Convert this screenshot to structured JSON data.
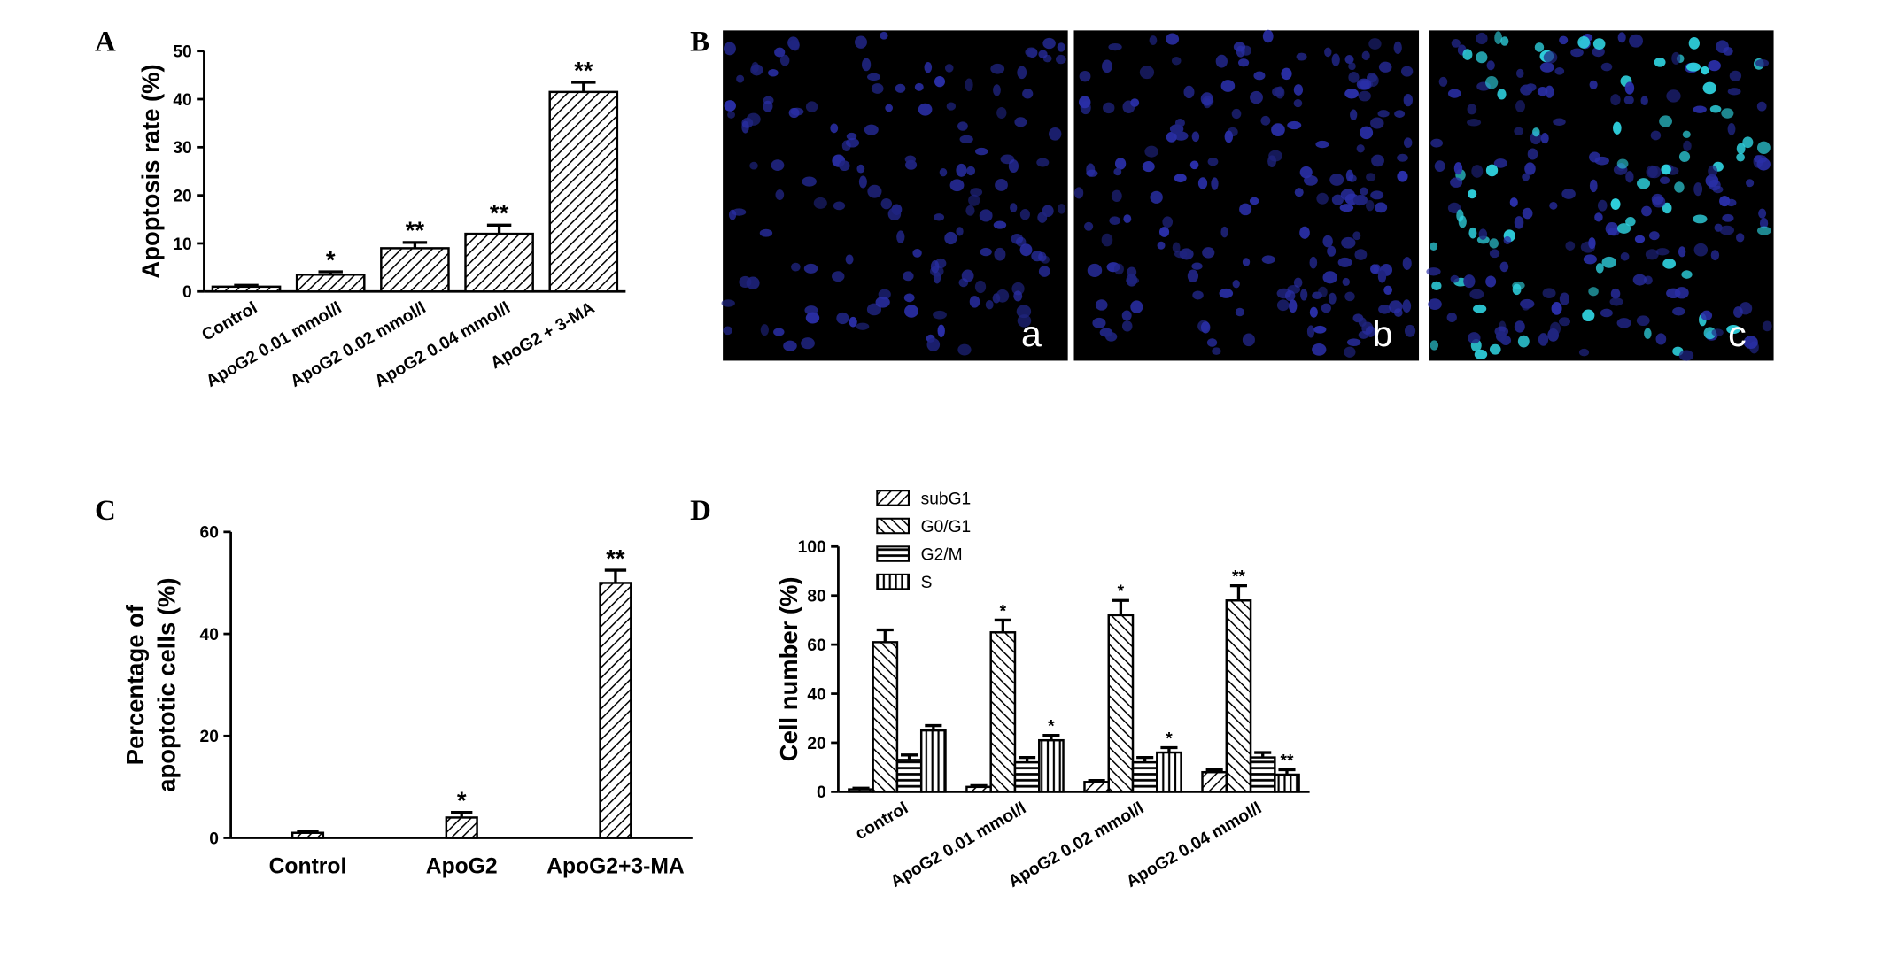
{
  "chart_data": [
    {
      "type": "bar",
      "panel_label": "A",
      "ylabel": "Apoptosis rate (%)",
      "categories": [
        "Control",
        "ApoG2 0.01 mmol/l",
        "ApoG2 0.02 mmol/l",
        "ApoG2 0.04 mmol/l",
        "ApoG2 + 3-MA"
      ],
      "values": [
        1,
        3.5,
        9,
        12,
        41.5
      ],
      "errors": [
        0.3,
        0.6,
        1.2,
        1.8,
        2
      ],
      "annotations": [
        null,
        "*",
        "**",
        "**",
        "**"
      ],
      "pattern": "diagonal",
      "ylim": [
        0,
        50
      ],
      "yticks": [
        0,
        10,
        20,
        30,
        40,
        50
      ]
    },
    {
      "type": "bar",
      "panel_label": "C",
      "ylabel": [
        "Percentage of",
        "apoptotic cells (%)"
      ],
      "categories": [
        "Control",
        "ApoG2",
        "ApoG2+3-MA"
      ],
      "values": [
        1,
        4,
        50
      ],
      "errors": [
        0.3,
        1,
        2.5
      ],
      "annotations": [
        null,
        "*",
        "**"
      ],
      "pattern": "diagonal",
      "ylim": [
        0,
        60
      ],
      "yticks": [
        0,
        20,
        40,
        60
      ]
    },
    {
      "type": "bar",
      "panel_label": "D",
      "ylabel": "Cell number (%)",
      "categories": [
        "control",
        "ApoG2 0.01 mmol/l",
        "ApoG2 0.02 mmol/l",
        "ApoG2 0.04 mmol/l"
      ],
      "series": [
        {
          "name": "subG1",
          "pattern": "diagonal",
          "values": [
            1,
            2,
            4,
            8
          ],
          "errors": [
            0.5,
            0.5,
            0.6,
            1
          ],
          "annotations": [
            null,
            null,
            null,
            null
          ]
        },
        {
          "name": "G0/G1",
          "pattern": "diagonal-back",
          "values": [
            61,
            65,
            72,
            78
          ],
          "errors": [
            5,
            5,
            6,
            6
          ],
          "annotations": [
            null,
            "*",
            "*",
            "**"
          ]
        },
        {
          "name": "G2/M",
          "pattern": "horizontal",
          "values": [
            13,
            12,
            12,
            14
          ],
          "errors": [
            2,
            2,
            2,
            2
          ],
          "annotations": [
            null,
            null,
            null,
            null
          ]
        },
        {
          "name": "S",
          "pattern": "vertical",
          "values": [
            25,
            21,
            16,
            7
          ],
          "errors": [
            2,
            2,
            2,
            2
          ],
          "annotations": [
            null,
            "*",
            "*",
            "**"
          ]
        }
      ],
      "ylim": [
        0,
        100
      ],
      "yticks": [
        0,
        20,
        40,
        60,
        80,
        100
      ]
    }
  ],
  "panel_b": {
    "panel_label": "B",
    "images": [
      "a",
      "b",
      "c"
    ]
  }
}
